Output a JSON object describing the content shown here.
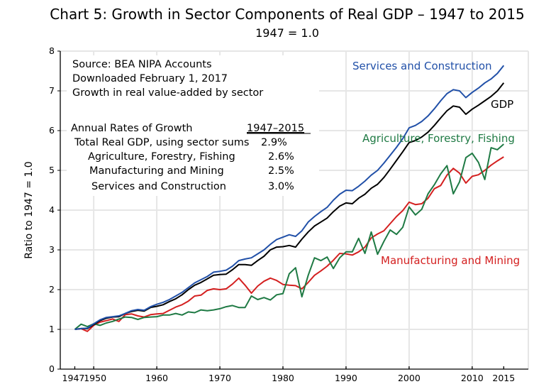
{
  "chart_data": {
    "type": "line",
    "title": "Chart 5:  Growth in Sector Components of Real GDP – 1947 to 2015",
    "subtitle": "1947 = 1.0",
    "xlabel": "",
    "ylabel": "Ratio to 1947 = 1.0",
    "xlim": [
      1944.7,
      2018.9
    ],
    "ylim": [
      0,
      8
    ],
    "grid": true,
    "x_ticks": [
      1947,
      1950,
      1960,
      1970,
      1980,
      1990,
      2000,
      2010,
      2015
    ],
    "x_tick_labels": [
      "1947",
      "1950",
      "1960",
      "1970",
      "1980",
      "1990",
      "2000",
      "2010",
      "2015"
    ],
    "x_gridlines": [
      1950,
      1960,
      1970,
      1980,
      1990,
      2000,
      2010,
      2018.9
    ],
    "y_ticks": [
      0,
      1,
      2,
      3,
      4,
      5,
      6,
      7,
      8
    ],
    "y_tick_labels": [
      "0",
      "1",
      "2",
      "3",
      "4",
      "5",
      "6",
      "7",
      "8"
    ],
    "x": [
      1947,
      1948,
      1949,
      1950,
      1951,
      1952,
      1953,
      1954,
      1955,
      1956,
      1957,
      1958,
      1959,
      1960,
      1961,
      1962,
      1963,
      1964,
      1965,
      1966,
      1967,
      1968,
      1969,
      1970,
      1971,
      1972,
      1973,
      1974,
      1975,
      1976,
      1977,
      1978,
      1979,
      1980,
      1981,
      1982,
      1983,
      1984,
      1985,
      1986,
      1987,
      1988,
      1989,
      1990,
      1991,
      1992,
      1993,
      1994,
      1995,
      1996,
      1997,
      1998,
      1999,
      2000,
      2001,
      2002,
      2003,
      2004,
      2005,
      2006,
      2007,
      2008,
      2009,
      2010,
      2011,
      2012,
      2013,
      2014,
      2015
    ],
    "series": [
      {
        "name": "Services and Construction",
        "color": "#2150a8",
        "label_position": "top-right",
        "values": [
          1.0,
          1.02,
          1.03,
          1.14,
          1.24,
          1.3,
          1.32,
          1.34,
          1.4,
          1.47,
          1.5,
          1.48,
          1.57,
          1.63,
          1.68,
          1.75,
          1.84,
          1.93,
          2.05,
          2.17,
          2.25,
          2.33,
          2.44,
          2.46,
          2.49,
          2.59,
          2.73,
          2.77,
          2.8,
          2.9,
          3.0,
          3.14,
          3.26,
          3.32,
          3.38,
          3.34,
          3.48,
          3.7,
          3.84,
          3.96,
          4.07,
          4.25,
          4.4,
          4.5,
          4.49,
          4.6,
          4.73,
          4.88,
          5.0,
          5.18,
          5.38,
          5.58,
          5.8,
          6.07,
          6.13,
          6.23,
          6.37,
          6.55,
          6.75,
          6.93,
          7.03,
          7.0,
          6.83,
          6.96,
          7.07,
          7.2,
          7.3,
          7.44,
          7.64
        ]
      },
      {
        "name": "GDP",
        "color": "#000000",
        "label_position": "right",
        "values": [
          1.0,
          1.02,
          1.02,
          1.12,
          1.22,
          1.28,
          1.31,
          1.32,
          1.4,
          1.45,
          1.48,
          1.46,
          1.55,
          1.58,
          1.62,
          1.7,
          1.77,
          1.87,
          2.0,
          2.11,
          2.18,
          2.27,
          2.36,
          2.38,
          2.39,
          2.5,
          2.63,
          2.63,
          2.61,
          2.73,
          2.84,
          3.0,
          3.07,
          3.08,
          3.11,
          3.07,
          3.27,
          3.45,
          3.6,
          3.7,
          3.8,
          3.96,
          4.1,
          4.18,
          4.16,
          4.3,
          4.4,
          4.55,
          4.65,
          4.82,
          5.03,
          5.25,
          5.47,
          5.7,
          5.75,
          5.84,
          5.96,
          6.13,
          6.32,
          6.5,
          6.62,
          6.59,
          6.41,
          6.54,
          6.64,
          6.75,
          6.86,
          7.0,
          7.2
        ]
      },
      {
        "name": "Agriculture, Forestry, Fishing",
        "color": "#1f7a44",
        "label_position": "right",
        "values": [
          1.0,
          1.13,
          1.07,
          1.14,
          1.1,
          1.16,
          1.2,
          1.26,
          1.31,
          1.3,
          1.25,
          1.3,
          1.31,
          1.32,
          1.36,
          1.36,
          1.4,
          1.36,
          1.44,
          1.42,
          1.49,
          1.47,
          1.49,
          1.52,
          1.57,
          1.6,
          1.55,
          1.55,
          1.84,
          1.75,
          1.8,
          1.74,
          1.87,
          1.9,
          2.4,
          2.55,
          1.82,
          2.36,
          2.8,
          2.73,
          2.82,
          2.53,
          2.8,
          2.95,
          2.95,
          3.29,
          2.91,
          3.45,
          2.89,
          3.21,
          3.5,
          3.39,
          3.57,
          4.08,
          3.88,
          4.02,
          4.41,
          4.64,
          4.91,
          5.12,
          4.41,
          4.71,
          5.32,
          5.43,
          5.2,
          4.77,
          5.57,
          5.52,
          5.66
        ]
      },
      {
        "name": "Manufacturing and Mining",
        "color": "#d42020",
        "label_position": "bottom-right",
        "values": [
          1.0,
          1.02,
          0.95,
          1.1,
          1.18,
          1.22,
          1.26,
          1.2,
          1.37,
          1.39,
          1.34,
          1.31,
          1.37,
          1.39,
          1.4,
          1.48,
          1.56,
          1.62,
          1.71,
          1.84,
          1.86,
          1.98,
          2.02,
          2.0,
          2.02,
          2.14,
          2.29,
          2.11,
          1.91,
          2.09,
          2.21,
          2.29,
          2.23,
          2.13,
          2.11,
          2.1,
          2.02,
          2.18,
          2.36,
          2.47,
          2.59,
          2.74,
          2.91,
          2.9,
          2.87,
          2.95,
          3.07,
          3.3,
          3.4,
          3.48,
          3.66,
          3.84,
          3.99,
          4.2,
          4.14,
          4.16,
          4.3,
          4.54,
          4.62,
          4.88,
          5.05,
          4.93,
          4.68,
          4.85,
          4.89,
          5.0,
          5.13,
          5.24,
          5.34
        ]
      }
    ],
    "annotations": {
      "source_lines": [
        "Source: BEA NIPA Accounts",
        "Downloaded February 1, 2017",
        "Growth in real value-added by sector"
      ],
      "rates_header": "Annual Rates of Growth",
      "rates_period": "1947–2015",
      "rates": [
        {
          "label": "Total Real GDP, using sector sums",
          "value": "2.9%"
        },
        {
          "label": "Agriculture, Forestry, Fishing",
          "value": "2.6%"
        },
        {
          "label": "Manufacturing and Mining",
          "value": "2.5%"
        },
        {
          "label": "Services and Construction",
          "value": "3.0%"
        }
      ]
    }
  }
}
